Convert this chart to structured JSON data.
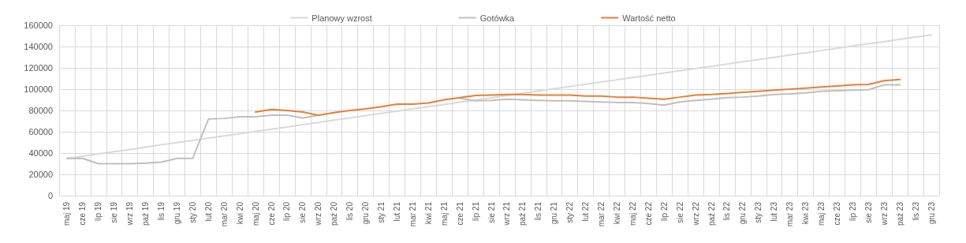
{
  "chart_data": {
    "type": "line",
    "categories": [
      "maj 19",
      "cze 19",
      "lip 19",
      "sie 19",
      "wrz 19",
      "paź 19",
      "lis 19",
      "gru 19",
      "sty 20",
      "lut 20",
      "mar 20",
      "kwi 20",
      "maj 20",
      "cze 20",
      "lip 20",
      "sie 20",
      "wrz 20",
      "paź 20",
      "lis 20",
      "gru 20",
      "sty 21",
      "lut 21",
      "mar 21",
      "kwi 21",
      "maj 21",
      "cze 21",
      "lip 21",
      "sie 21",
      "wrz 21",
      "paź 21",
      "lis 21",
      "gru 21",
      "sty 22",
      "lut 22",
      "mar 22",
      "kwi 22",
      "maj 22",
      "cze 22",
      "lip 22",
      "sie 22",
      "wrz 22",
      "paź 22",
      "lis 22",
      "gru 22",
      "sty 23",
      "lut 23",
      "mar 23",
      "kwi 23",
      "maj 23",
      "cze 23",
      "lip 23",
      "sie 23",
      "wrz 23",
      "paź 23",
      "lis 23",
      "gru 23"
    ],
    "series": [
      {
        "name": "Planowy wzrost",
        "color": "#d9d9d9",
        "values": [
          35000,
          37100,
          39200,
          41300,
          43400,
          45500,
          47700,
          49800,
          51900,
          54000,
          56100,
          58200,
          60300,
          62400,
          64500,
          66600,
          68700,
          70900,
          73000,
          75100,
          77200,
          79300,
          81400,
          83500,
          85600,
          87700,
          89800,
          91900,
          94100,
          96200,
          98300,
          100400,
          102500,
          104600,
          106700,
          108800,
          110900,
          113000,
          115100,
          117300,
          119400,
          121500,
          123600,
          125700,
          127800,
          129900,
          132000,
          134100,
          136200,
          138300,
          140500,
          142600,
          144700,
          146800,
          148900,
          151000
        ]
      },
      {
        "name": "Gotówka",
        "color": "#bfbfbf",
        "values": [
          35000,
          35000,
          30000,
          30000,
          30000,
          30500,
          31500,
          35000,
          35000,
          72000,
          72500,
          74000,
          74000,
          75500,
          75500,
          73000,
          75500,
          null,
          null,
          null,
          null,
          null,
          null,
          null,
          null,
          91500,
          89000,
          89500,
          90500,
          90000,
          89500,
          89000,
          89000,
          88500,
          88000,
          87500,
          87500,
          86500,
          85000,
          88000,
          89500,
          90500,
          92000,
          92500,
          93500,
          95000,
          95500,
          96500,
          98000,
          98500,
          99000,
          99500,
          104000,
          104000,
          null,
          null
        ]
      },
      {
        "name": "Wartość netto",
        "color": "#ed7d31",
        "values": [
          null,
          null,
          null,
          null,
          null,
          null,
          null,
          null,
          null,
          null,
          null,
          null,
          78500,
          81000,
          80000,
          78500,
          75500,
          78000,
          80000,
          81500,
          83500,
          86000,
          86000,
          87000,
          90000,
          92000,
          94000,
          94500,
          95000,
          95000,
          94500,
          94500,
          94500,
          93500,
          93500,
          92500,
          92500,
          91500,
          90500,
          92500,
          94500,
          95000,
          96000,
          97000,
          98000,
          99000,
          100000,
          101000,
          102000,
          103000,
          104000,
          104500,
          108000,
          109000,
          null,
          null
        ]
      }
    ],
    "ylim": [
      0,
      160000
    ],
    "yticks": [
      0,
      20000,
      40000,
      60000,
      80000,
      100000,
      120000,
      140000,
      160000
    ],
    "grid": true,
    "legend": "top",
    "marker": "none",
    "line_style": "solid"
  }
}
